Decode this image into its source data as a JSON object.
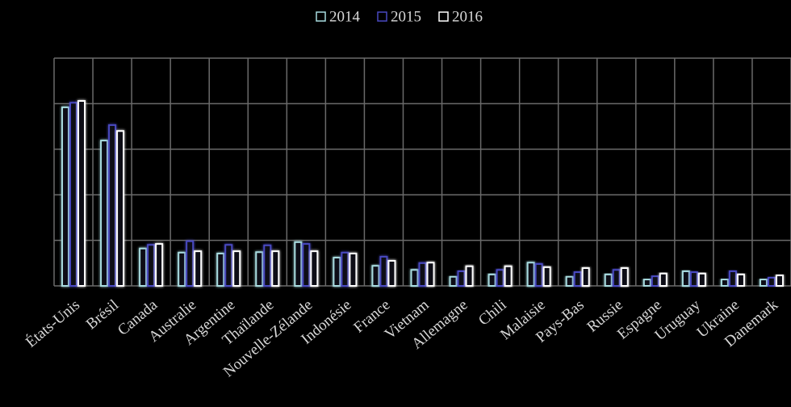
{
  "chart_data": {
    "type": "bar",
    "categories": [
      "États-Unis",
      "Brésil",
      "Canada",
      "Australie",
      "Argentine",
      "Thaïlande",
      "Nouvelle-Zélande",
      "Indonésie",
      "France",
      "Vietnam",
      "Allemagne",
      "Chili",
      "Malaisie",
      "Pays-Bas",
      "Russie",
      "Espagne",
      "Uruguay",
      "Ukraine",
      "Danemark"
    ],
    "series": [
      {
        "name": "2014",
        "color": "#a8dce0",
        "values": [
          3.92,
          3.19,
          0.82,
          0.73,
          0.71,
          0.74,
          0.96,
          0.62,
          0.44,
          0.35,
          0.2,
          0.25,
          0.51,
          0.2,
          0.25,
          0.14,
          0.32,
          0.14,
          0.14
        ]
      },
      {
        "name": "2015",
        "color": "#4848c0",
        "values": [
          4.02,
          3.53,
          0.9,
          0.98,
          0.9,
          0.89,
          0.92,
          0.73,
          0.64,
          0.5,
          0.32,
          0.35,
          0.48,
          0.3,
          0.35,
          0.21,
          0.3,
          0.32,
          0.18
        ]
      },
      {
        "name": "2016",
        "color": "#ffffff",
        "values": [
          4.06,
          3.4,
          0.92,
          0.76,
          0.76,
          0.76,
          0.76,
          0.71,
          0.55,
          0.51,
          0.43,
          0.43,
          0.41,
          0.39,
          0.39,
          0.27,
          0.27,
          0.25,
          0.23
        ]
      }
    ],
    "ylim": [
      0,
      5
    ],
    "yticks": [
      0,
      1,
      2,
      3,
      4,
      5
    ],
    "grid": true,
    "legend": "top"
  }
}
